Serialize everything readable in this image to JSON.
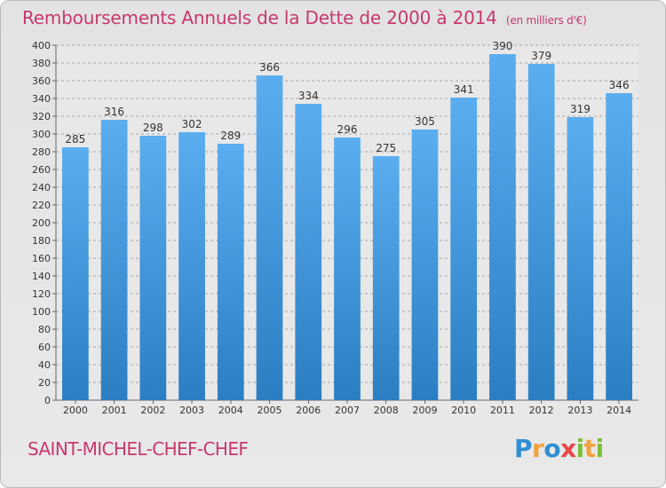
{
  "title": "Remboursements Annuels de la Dette de 2000 à 2014",
  "subtitle": "(en milliers d'€)",
  "city": "SAINT-MICHEL-CHEF-CHEF",
  "logo": {
    "letters": [
      "P",
      "r",
      "o",
      "x",
      "i",
      "t",
      "i"
    ],
    "colors": [
      "#2e8fd6",
      "#f2a23a",
      "#2e8fd6",
      "#e8464a",
      "#7cbf3a",
      "#f2a23a",
      "#7cbf3a"
    ]
  },
  "colors": {
    "bar_light": "#5aaef0",
    "bar_dark": "#2c7ec2",
    "text": "#c8386e",
    "grid": "#a7a7a7"
  },
  "chart_data": {
    "type": "bar",
    "categories": [
      "2000",
      "2001",
      "2002",
      "2003",
      "2004",
      "2005",
      "2006",
      "2007",
      "2008",
      "2009",
      "2010",
      "2011",
      "2012",
      "2013",
      "2014"
    ],
    "values": [
      285,
      316,
      298,
      302,
      289,
      366,
      334,
      296,
      275,
      305,
      341,
      390,
      379,
      319,
      346
    ],
    "title": "Remboursements Annuels de la Dette de 2000 à 2014",
    "xlabel": "",
    "ylabel": "",
    "ylim": [
      0,
      400
    ],
    "yticks": [
      0,
      20,
      40,
      60,
      80,
      100,
      120,
      140,
      160,
      180,
      200,
      220,
      240,
      260,
      280,
      300,
      320,
      340,
      360,
      380,
      400
    ],
    "grid": true,
    "legend": "none",
    "data_labels": true
  }
}
